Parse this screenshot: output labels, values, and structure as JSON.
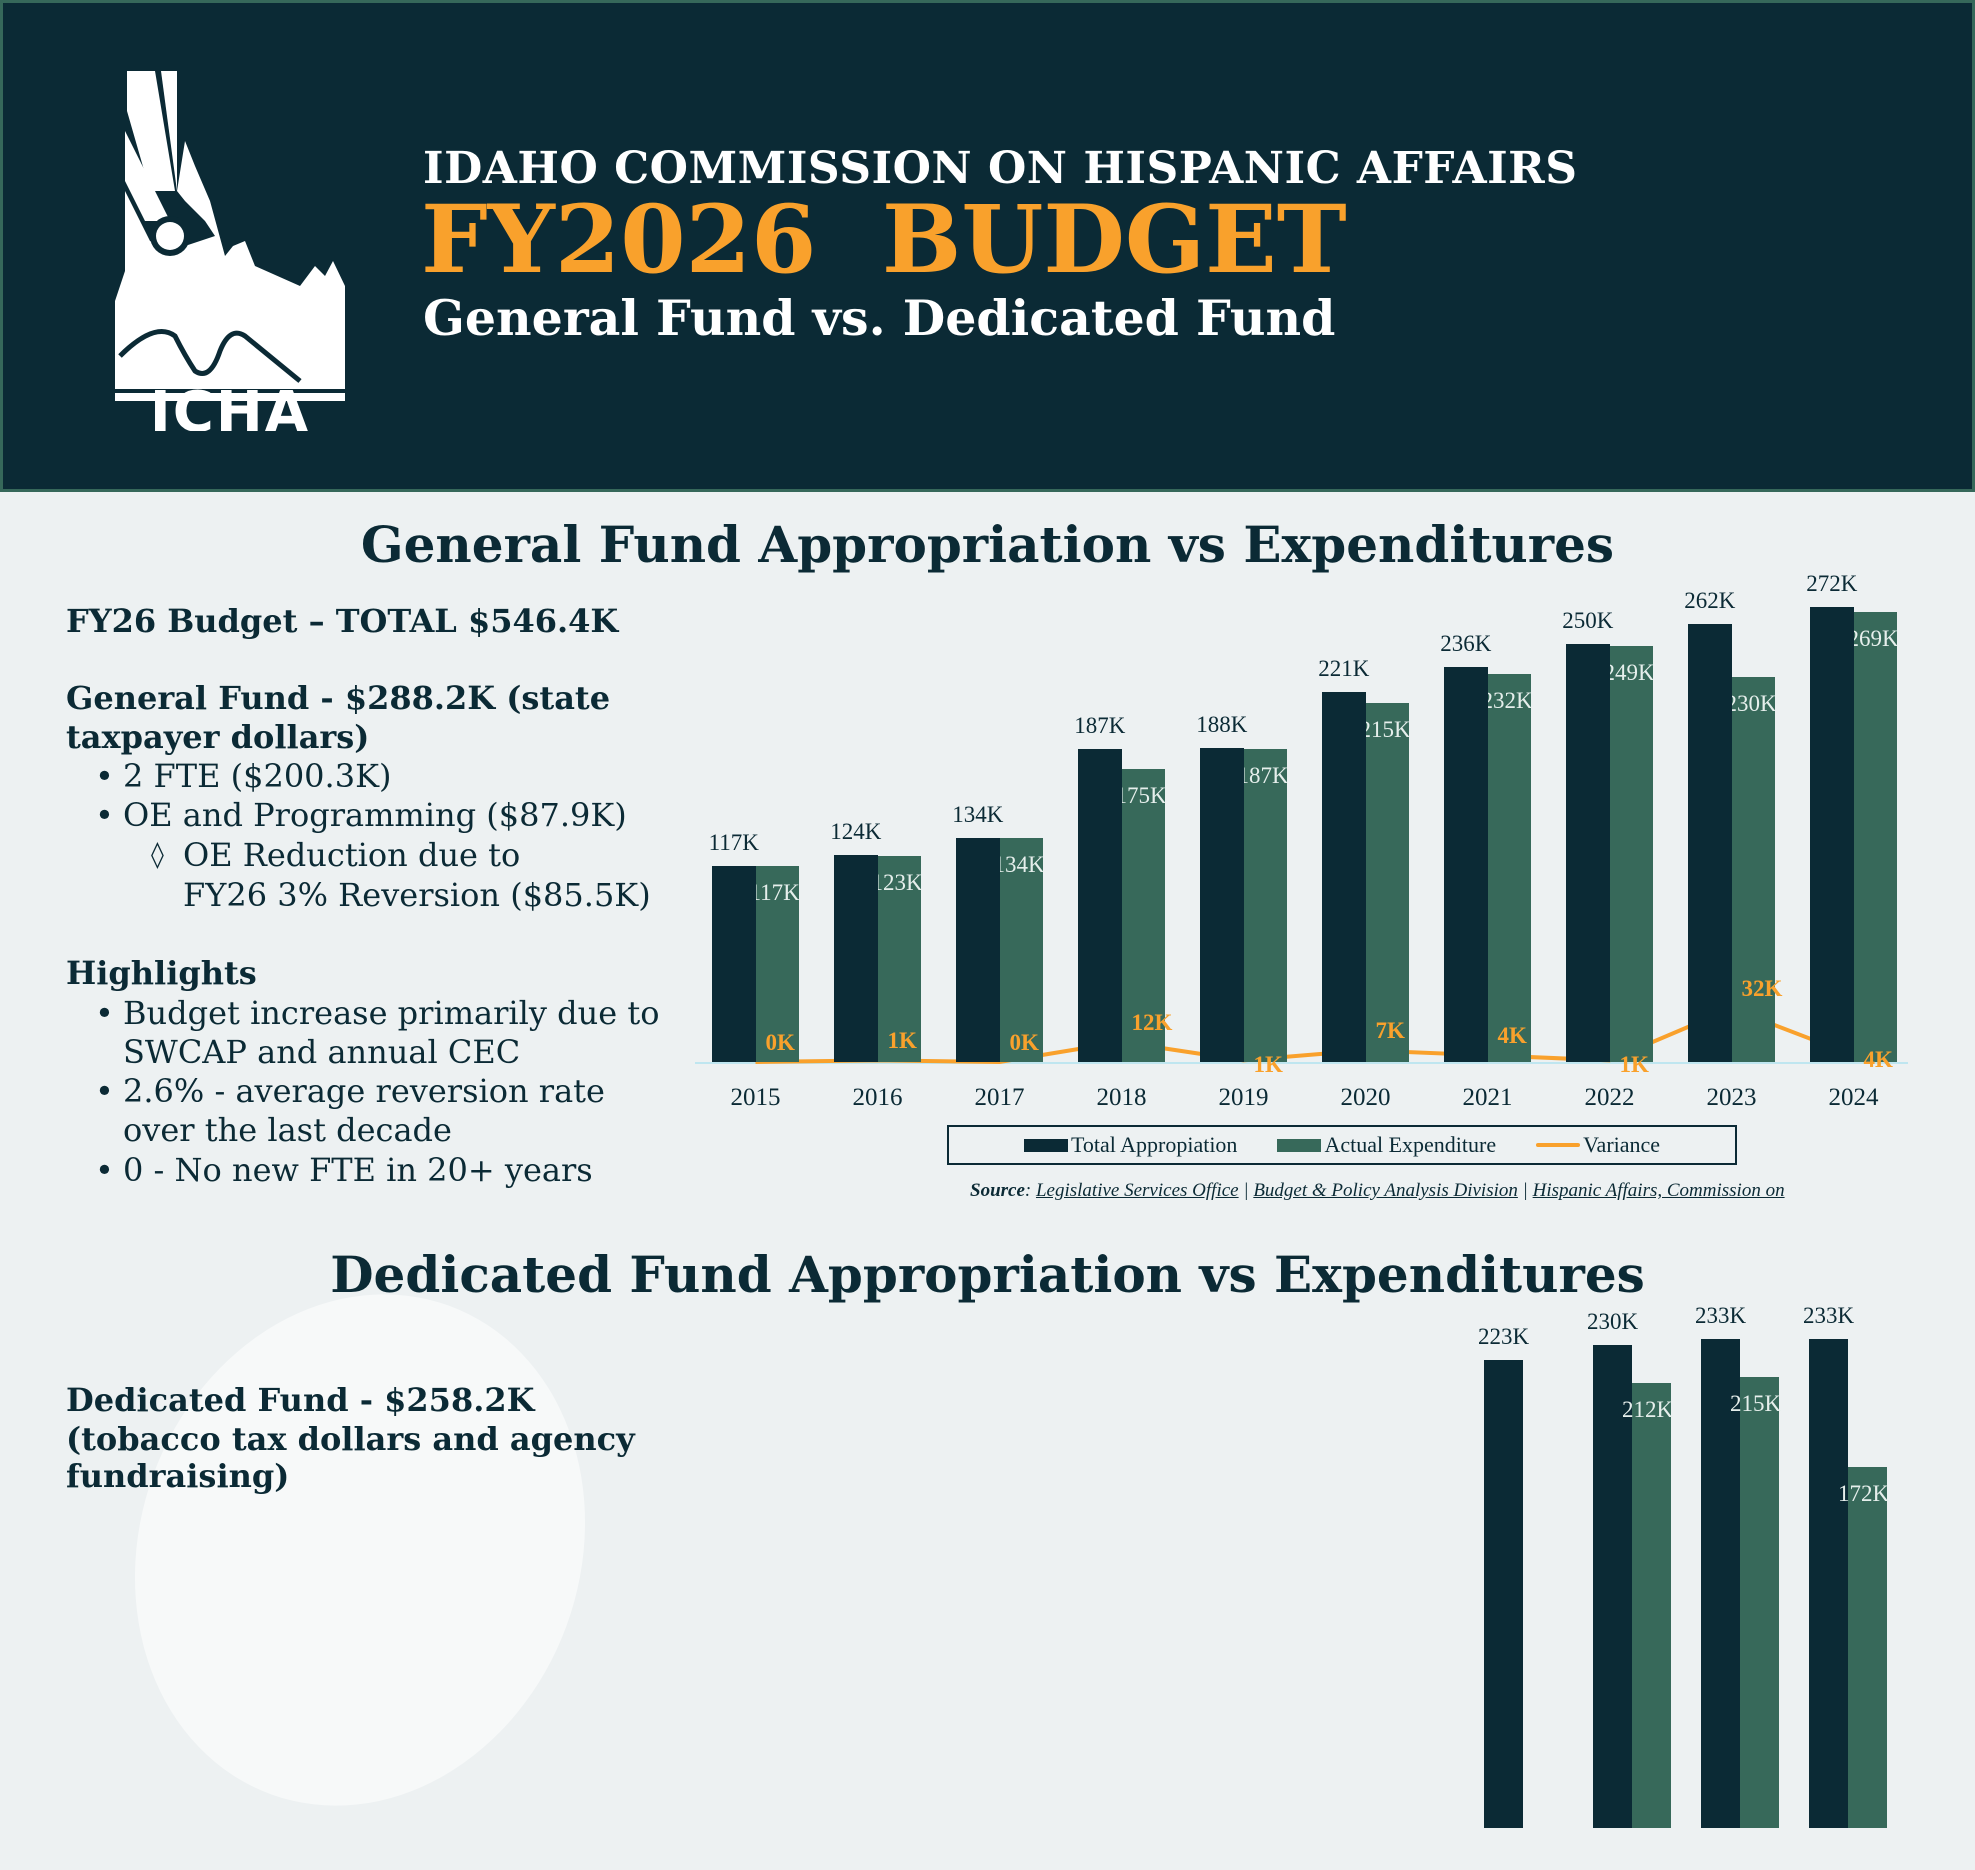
{
  "header": {
    "logo_text": "ICHA",
    "organization": "IDAHO COMMISSION ON HISPANIC AFFAIRS",
    "title": "FY2026  BUDGET",
    "subtitle": "General Fund vs. Dedicated Fund"
  },
  "general": {
    "section_title": "General Fund Appropriation vs Expenditures",
    "total": "FY26 Budget – TOTAL $546.4K",
    "fund_line1": "General Fund - $288.2K (state",
    "fund_line2": "taxpayer dollars)",
    "bullets": [
      "2 FTE ($200.3K)",
      "OE and Programming ($87.9K)"
    ],
    "sub_bullet_line1": "OE Reduction due to",
    "sub_bullet_line2": "FY26 3% Reversion ($85.5K)",
    "highlights_title": "Highlights",
    "highlights": [
      {
        "line1": "Budget increase primarily due to",
        "line2": "SWCAP and annual CEC"
      },
      {
        "line1": "2.6% - average reversion rate",
        "line2": "over the last decade"
      },
      {
        "line1": "0 - No new FTE in 20+ years",
        "line2": ""
      }
    ],
    "source_label": "Source",
    "source_links": [
      "Legislative Services Office",
      "Budget & Policy Analysis Division",
      "Hispanic Affairs, Commission on"
    ]
  },
  "dedicated": {
    "section_title": "Dedicated Fund Appropriation vs Expenditures",
    "fund_line1": "Dedicated Fund - $258.2K",
    "fund_line2": "(tobacco tax dollars and agency",
    "fund_line3": "fundraising)"
  },
  "colors": {
    "navy": "#0b2a35",
    "green": "#37695a",
    "orange": "#f9a12c",
    "background": "#edf1f2"
  },
  "chart_data": [
    {
      "type": "bar",
      "title": "General Fund Appropriation vs Expenditures",
      "categories": [
        "2015",
        "2016",
        "2017",
        "2018",
        "2019",
        "2020",
        "2021",
        "2022",
        "2023",
        "2024"
      ],
      "series": [
        {
          "name": "Total Appropiation",
          "type": "bar",
          "values": [
            117,
            124,
            134,
            187,
            188,
            221,
            236,
            250,
            262,
            272
          ],
          "labels": [
            "117K",
            "124K",
            "134K",
            "187K",
            "188K",
            "221K",
            "236K",
            "250K",
            "262K",
            "272K"
          ]
        },
        {
          "name": "Actual Expenditure",
          "type": "bar",
          "values": [
            117,
            123,
            134,
            175,
            187,
            215,
            232,
            249,
            230,
            269
          ],
          "labels": [
            "117K",
            "123K",
            "134K",
            "175K",
            "187K",
            "215K",
            "232K",
            "249K",
            "230K",
            "269K"
          ]
        },
        {
          "name": "Variance",
          "type": "line",
          "values": [
            0,
            1,
            0,
            12,
            1,
            7,
            4,
            1,
            32,
            4
          ],
          "labels": [
            "0K",
            "1K",
            "0K",
            "12K",
            "1K",
            "7K",
            "4K",
            "1K",
            "32K",
            "4K"
          ]
        }
      ],
      "units": "K",
      "legend": "bottom",
      "grid": false
    },
    {
      "type": "bar",
      "title": "Dedicated Fund Appropriation vs Expenditures",
      "categories": [
        "",
        "",
        "",
        ""
      ],
      "series": [
        {
          "name": "Total Appropiation",
          "values": [
            223,
            230,
            233,
            233
          ],
          "labels": [
            "223K",
            "230K",
            "233K",
            "233K"
          ]
        },
        {
          "name": "Actual Expenditure",
          "values": [
            null,
            212,
            215,
            172
          ],
          "labels": [
            "",
            "212K",
            "215K",
            "172K"
          ]
        }
      ],
      "units": "K"
    }
  ]
}
